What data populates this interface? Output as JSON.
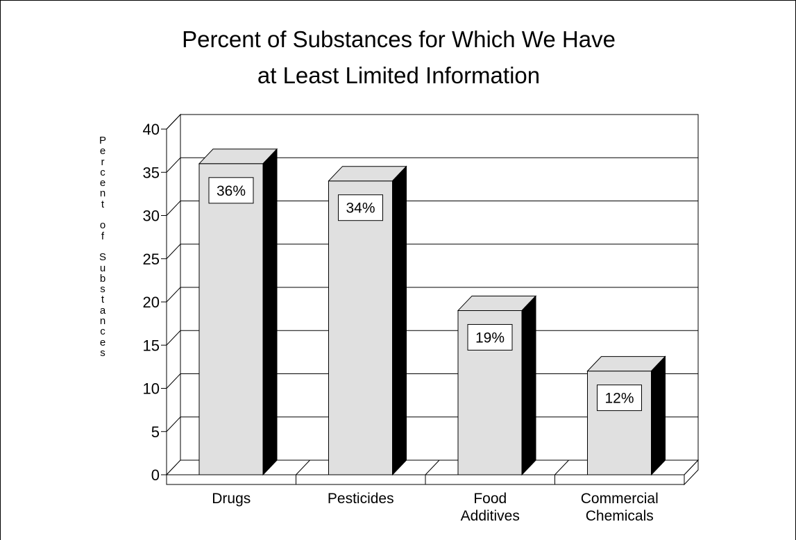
{
  "chart_data": {
    "type": "bar",
    "title": [
      "Percent of Substances for Which We Have",
      "at Least Limited Information"
    ],
    "ylabel": "Percent of Substances",
    "xlabel": "",
    "categories": [
      [
        "Drugs"
      ],
      [
        "Pesticides"
      ],
      [
        "Food",
        "Additives"
      ],
      [
        "Commercial",
        "Chemicals"
      ]
    ],
    "values": [
      36,
      34,
      19,
      12
    ],
    "data_labels": [
      "36%",
      "34%",
      "19%",
      "12%"
    ],
    "yticks": [
      "0",
      "5",
      "10",
      "15",
      "20",
      "25",
      "30",
      "35",
      "40"
    ],
    "ylim": [
      0,
      40
    ],
    "grid": true,
    "legend": "none",
    "style": "3d",
    "colors": {
      "bar_face": "#e0e0e0",
      "bar_side": "#000000",
      "bar_top": "#e0e0e0",
      "grid": "#000000"
    }
  }
}
